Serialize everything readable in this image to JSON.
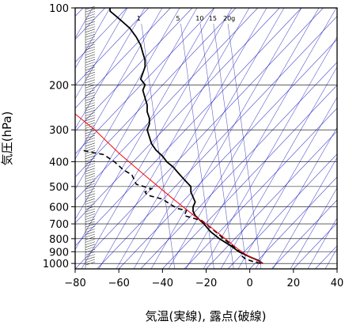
{
  "chart_data": {
    "type": "line",
    "title": "",
    "xlabel": "気温(実線), 露点(破線)",
    "ylabel": "気圧(hPa)",
    "xlim": [
      -80,
      40
    ],
    "ylim_hpa": [
      1050,
      100
    ],
    "y_scale": "log",
    "grid": true,
    "x_ticks": [
      "−80",
      "−60",
      "−40",
      "−20",
      "0",
      "20",
      "40"
    ],
    "y_ticks": [
      {
        "p": 100,
        "label": "100"
      },
      {
        "p": 200,
        "label": "200"
      },
      {
        "p": 300,
        "label": "300"
      },
      {
        "p": 400,
        "label": "400"
      },
      {
        "p": 500,
        "label": "500"
      },
      {
        "p": 600,
        "label": "600"
      },
      {
        "p": 700,
        "label": "700"
      },
      {
        "p": 800,
        "label": "800"
      },
      {
        "p": 900,
        "label": "900"
      },
      {
        "p": 1000,
        "label": "1000"
      }
    ],
    "mixing_ratio_labels": [
      {
        "w": 1,
        "label": "1"
      },
      {
        "w": 5,
        "label": "5"
      },
      {
        "w": 10,
        "label": "10"
      },
      {
        "w": 15,
        "label": "15"
      },
      {
        "w": 20,
        "label": "20g"
      }
    ],
    "colors": {
      "temperature": "#000000",
      "dewpoint": "#000000",
      "parcel": "#ff0000",
      "isotherm": "#0000bb",
      "mixing_ratio": "#2b2bbb",
      "grid": "#000000"
    },
    "series": [
      {
        "style": "solid",
        "points": [
          [
            6,
            1000
          ],
          [
            4,
            975
          ],
          [
            1,
            950
          ],
          [
            -2,
            925
          ],
          [
            -5,
            900
          ],
          [
            -9,
            850
          ],
          [
            -14,
            800
          ],
          [
            -18,
            750
          ],
          [
            -21,
            700
          ],
          [
            -23,
            675
          ],
          [
            -25,
            650
          ],
          [
            -26,
            625
          ],
          [
            -26,
            600
          ],
          [
            -25,
            575
          ],
          [
            -26,
            550
          ],
          [
            -27,
            525
          ],
          [
            -27,
            500
          ],
          [
            -29,
            480
          ],
          [
            -31,
            460
          ],
          [
            -33,
            440
          ],
          [
            -35,
            420
          ],
          [
            -38,
            400
          ],
          [
            -40,
            380
          ],
          [
            -43,
            360
          ],
          [
            -45,
            340
          ],
          [
            -46,
            320
          ],
          [
            -47,
            300
          ],
          [
            -46,
            285
          ],
          [
            -46,
            270
          ],
          [
            -47,
            255
          ],
          [
            -47,
            240
          ],
          [
            -48,
            225
          ],
          [
            -49,
            210
          ],
          [
            -48,
            200
          ],
          [
            -50,
            190
          ],
          [
            -49,
            180
          ],
          [
            -48,
            170
          ],
          [
            -48,
            160
          ],
          [
            -49,
            150
          ],
          [
            -50,
            140
          ],
          [
            -52,
            130
          ],
          [
            -55,
            120
          ],
          [
            -60,
            110
          ],
          [
            -64,
            103
          ],
          [
            -64,
            100
          ]
        ]
      },
      {
        "style": "dashed",
        "points": [
          [
            5,
            1000
          ],
          [
            1,
            980
          ],
          [
            -2,
            960
          ],
          [
            -3,
            945
          ],
          [
            -4,
            930
          ],
          [
            -4,
            910
          ],
          [
            -6,
            880
          ],
          [
            -12,
            800
          ],
          [
            -15,
            760
          ],
          [
            -20,
            700
          ],
          [
            -22,
            680
          ],
          [
            -30,
            650
          ],
          [
            -29,
            620
          ],
          [
            -33,
            610
          ],
          [
            -36,
            590
          ],
          [
            -40,
            560
          ],
          [
            -47,
            540
          ],
          [
            -48,
            525
          ],
          [
            -45,
            510
          ],
          [
            -52,
            490
          ],
          [
            -54,
            450
          ],
          [
            -58,
            430
          ],
          [
            -62,
            400
          ],
          [
            -67,
            375
          ],
          [
            -74,
            365
          ],
          [
            -77,
            360
          ]
        ]
      },
      {
        "style": "parcel",
        "points": [
          [
            6,
            1000
          ],
          [
            2,
            960
          ],
          [
            -2,
            920
          ],
          [
            -6,
            870
          ],
          [
            -12,
            790
          ],
          [
            -18,
            720
          ],
          [
            -25,
            655
          ],
          [
            -35,
            560
          ],
          [
            -47,
            460
          ],
          [
            -60,
            370
          ],
          [
            -71,
            300
          ],
          [
            -80,
            260
          ]
        ]
      }
    ]
  }
}
